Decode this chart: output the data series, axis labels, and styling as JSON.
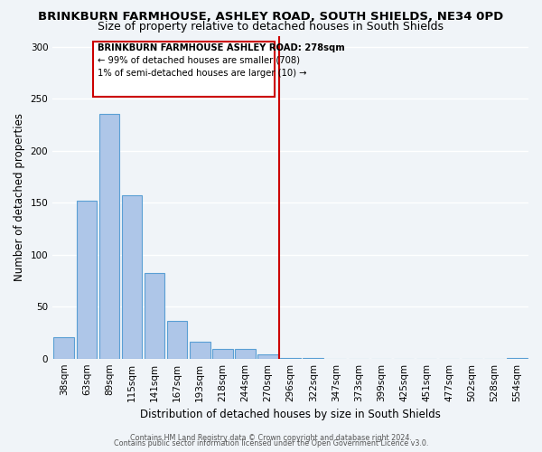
{
  "title": "BRINKBURN FARMHOUSE, ASHLEY ROAD, SOUTH SHIELDS, NE34 0PD",
  "subtitle": "Size of property relative to detached houses in South Shields",
  "xlabel": "Distribution of detached houses by size in South Shields",
  "ylabel": "Number of detached properties",
  "bar_values": [
    21,
    152,
    235,
    157,
    82,
    36,
    16,
    9,
    9,
    4,
    1,
    1,
    0,
    0,
    0,
    0,
    0,
    0,
    0,
    0,
    1
  ],
  "bar_labels": [
    "38sqm",
    "63sqm",
    "89sqm",
    "115sqm",
    "141sqm",
    "167sqm",
    "193sqm",
    "218sqm",
    "244sqm",
    "270sqm",
    "296sqm",
    "322sqm",
    "347sqm",
    "373sqm",
    "399sqm",
    "425sqm",
    "451sqm",
    "477sqm",
    "502sqm",
    "528sqm",
    "554sqm"
  ],
  "bar_color": "#aec6e8",
  "bar_edge_color": "#5a9fd4",
  "vline_x": 9.5,
  "vline_color": "#cc0000",
  "annotation_title": "BRINKBURN FARMHOUSE ASHLEY ROAD: 278sqm",
  "annotation_line1": "← 99% of detached houses are smaller (708)",
  "annotation_line2": "1% of semi-detached houses are larger (10) →",
  "ylim": [
    0,
    310
  ],
  "yticks": [
    0,
    50,
    100,
    150,
    200,
    250,
    300
  ],
  "footer1": "Contains HM Land Registry data © Crown copyright and database right 2024.",
  "footer2": "Contains public sector information licensed under the Open Government Licence v3.0.",
  "bg_color": "#f0f4f8",
  "plot_bg_color": "#f0f4f8",
  "title_fontsize": 9.5,
  "subtitle_fontsize": 9,
  "axis_label_fontsize": 8.5,
  "tick_fontsize": 7.5
}
